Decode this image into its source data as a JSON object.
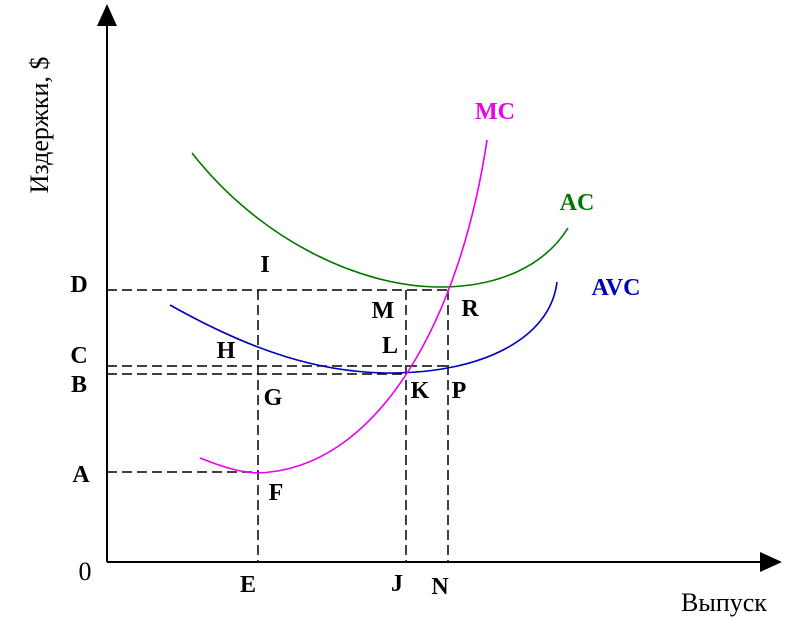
{
  "axes": {
    "y_label": "Издержки, $",
    "x_label": "Выпуск",
    "origin": "0"
  },
  "curves": [
    {
      "label": "MC"
    },
    {
      "label": "AC"
    },
    {
      "label": "AVC"
    }
  ],
  "y_points": [
    "D",
    "C",
    "B",
    "A"
  ],
  "x_points": [
    "E",
    "J",
    "N"
  ],
  "points": [
    "I",
    "H",
    "G",
    "F",
    "M",
    "L",
    "K",
    "R",
    "P"
  ]
}
